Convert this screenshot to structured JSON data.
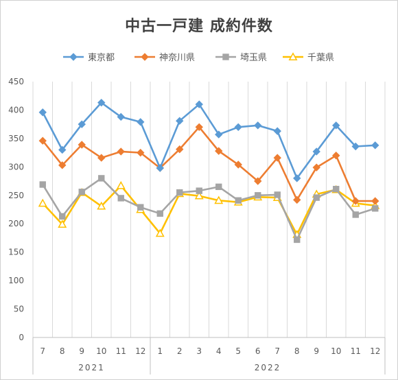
{
  "chart_data": {
    "type": "line",
    "title": "中古一戸建 成約件数",
    "xlabel": "",
    "ylabel": "",
    "ylim": [
      0,
      450
    ],
    "yticks": [
      0,
      50,
      100,
      150,
      200,
      250,
      300,
      350,
      400,
      450
    ],
    "categories": [
      "7",
      "8",
      "9",
      "10",
      "11",
      "12",
      "1",
      "2",
      "3",
      "4",
      "5",
      "6",
      "7",
      "8",
      "9",
      "10",
      "11",
      "12"
    ],
    "year_groups": [
      {
        "label": "2021",
        "count": 6
      },
      {
        "label": "2022",
        "count": 12
      }
    ],
    "grid": "vertical",
    "legend_position": "top",
    "series": [
      {
        "name": "東京都",
        "color": "#5b9bd5",
        "marker": "diamond",
        "values": [
          396,
          330,
          375,
          413,
          388,
          379,
          298,
          381,
          410,
          357,
          370,
          373,
          363,
          280,
          327,
          373,
          336,
          338
        ]
      },
      {
        "name": "神奈川県",
        "color": "#ed7d31",
        "marker": "diamond",
        "values": [
          346,
          303,
          339,
          316,
          327,
          325,
          298,
          331,
          370,
          328,
          304,
          275,
          316,
          242,
          299,
          320,
          240,
          240
        ]
      },
      {
        "name": "埼玉県",
        "color": "#a5a5a5",
        "marker": "square",
        "values": [
          269,
          213,
          256,
          280,
          245,
          229,
          218,
          255,
          258,
          265,
          241,
          250,
          251,
          172,
          246,
          261,
          216,
          227
        ]
      },
      {
        "name": "千葉県",
        "color": "#ffc000",
        "marker": "triangle",
        "values": [
          236,
          199,
          255,
          231,
          267,
          225,
          183,
          253,
          249,
          241,
          238,
          247,
          246,
          181,
          252,
          260,
          236,
          232
        ]
      }
    ]
  }
}
